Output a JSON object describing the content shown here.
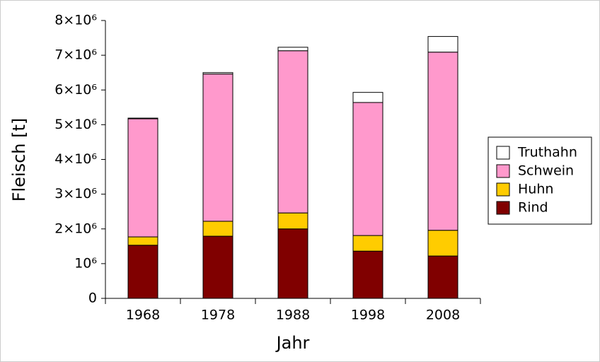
{
  "chart_data": {
    "type": "stacked-bar",
    "xlabel": "Jahr",
    "ylabel": "Fleisch [t]",
    "categories": [
      "1968",
      "1978",
      "1988",
      "1998",
      "2008"
    ],
    "series": [
      {
        "name": "Rind",
        "color": "#800000",
        "values": [
          1530000,
          1790000,
          2000000,
          1360000,
          1220000
        ]
      },
      {
        "name": "Huhn",
        "color": "#ffcc00",
        "values": [
          240000,
          430000,
          460000,
          450000,
          740000
        ]
      },
      {
        "name": "Schwein",
        "color": "#ff99cc",
        "values": [
          3400000,
          4240000,
          4670000,
          3830000,
          5130000
        ]
      },
      {
        "name": "Truthahn",
        "color": "#ffffff",
        "values": [
          20000,
          40000,
          100000,
          290000,
          450000
        ]
      }
    ],
    "ylim": [
      0,
      8000000
    ],
    "yticks": [
      0,
      {
        "value": 1000000,
        "label": "10⁶"
      },
      {
        "value": 2000000,
        "label": "2×10⁶"
      },
      {
        "value": 3000000,
        "label": "3×10⁶"
      },
      {
        "value": 4000000,
        "label": "4×10⁶"
      },
      {
        "value": 5000000,
        "label": "5×10⁶"
      },
      {
        "value": 6000000,
        "label": "6×10⁶"
      },
      {
        "value": 7000000,
        "label": "7×10⁶"
      },
      {
        "value": 8000000,
        "label": "8×10⁶"
      }
    ],
    "legend": "right"
  }
}
